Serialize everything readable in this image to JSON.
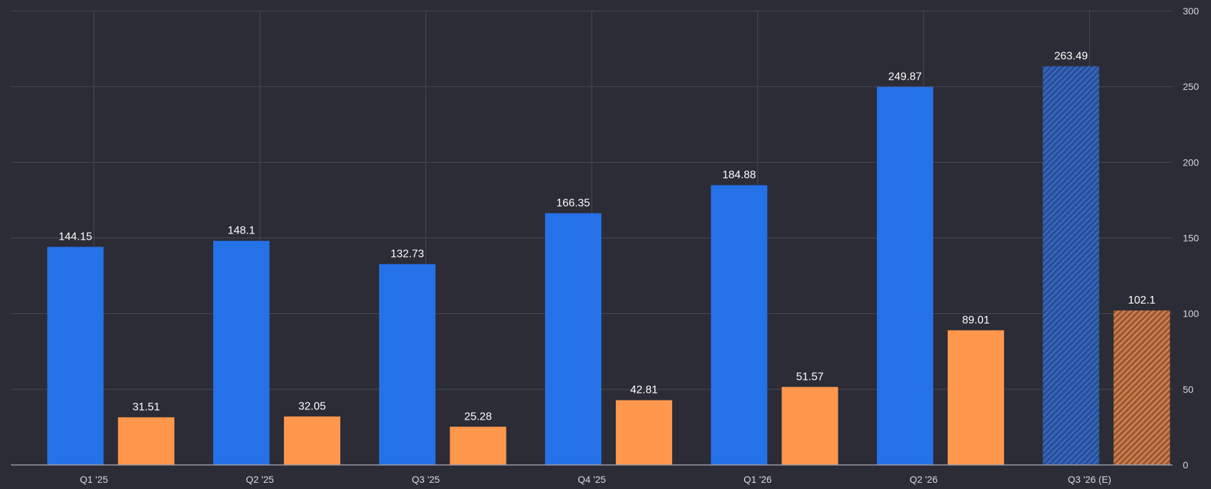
{
  "chart_data": {
    "type": "bar",
    "title": "",
    "xlabel": "",
    "ylabel": "",
    "categories": [
      "Q1 '25",
      "Q2 '25",
      "Q3 '25",
      "Q4 '25",
      "Q1 '26",
      "Q2 '26",
      "Q3 '26 (E)"
    ],
    "series": [
      {
        "color": "#2571e8",
        "values": [
          144.15,
          148.1,
          132.73,
          166.35,
          184.88,
          249.87,
          263.49
        ]
      },
      {
        "color": "#ff974d",
        "values": [
          31.51,
          32.05,
          25.28,
          42.81,
          51.57,
          89.01,
          102.1
        ]
      }
    ],
    "estimated_categories": [
      "Q3 '26 (E)"
    ],
    "ylim": [
      0,
      300
    ],
    "yticks": [
      0,
      50,
      100,
      150,
      200,
      250,
      300
    ],
    "y_axis_position": "right",
    "grid": true,
    "legend": "none"
  },
  "colors": {
    "background": "#2b2c35",
    "grid": "#4a4b55",
    "axis": "#9b9ca6",
    "estimate_blue_base": "#2a4f98",
    "estimate_blue_stripe": "#3b6dc6",
    "estimate_orange_base": "#9e5a36",
    "estimate_orange_stripe": "#d98a56"
  }
}
